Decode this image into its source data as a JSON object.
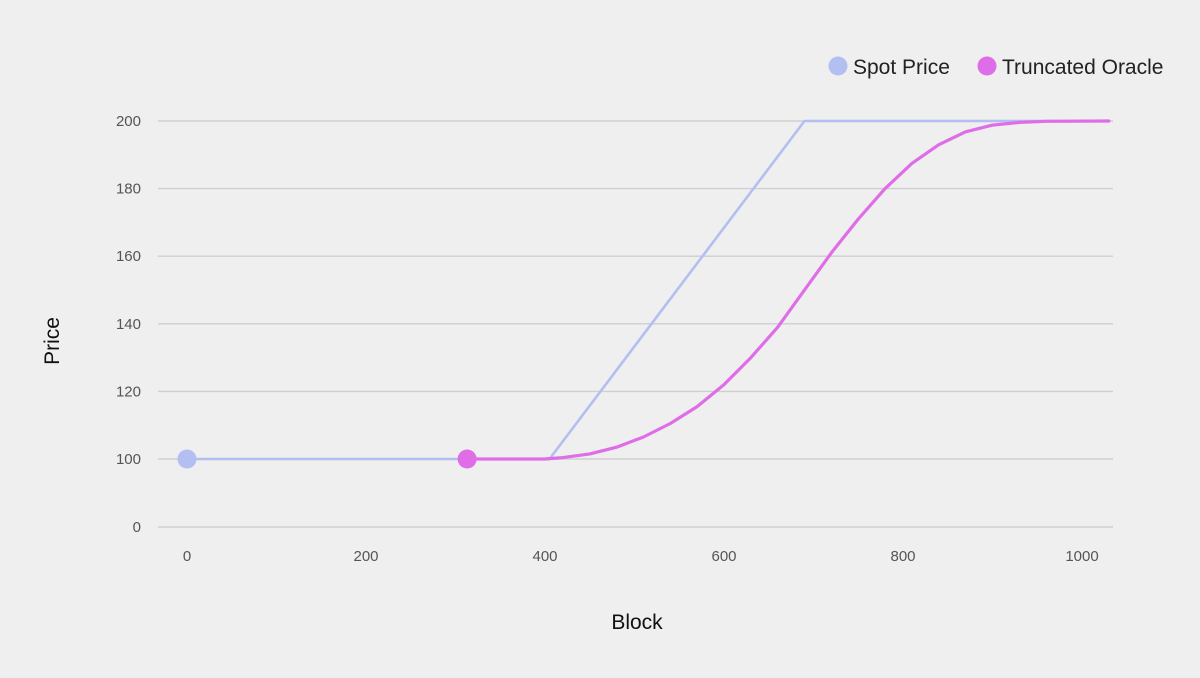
{
  "chart_data": {
    "type": "line",
    "xlabel": "Block",
    "ylabel": "Price",
    "x_ticks": [
      0,
      200,
      400,
      600,
      800,
      1000
    ],
    "y_ticks": [
      0,
      100,
      120,
      140,
      160,
      180,
      200
    ],
    "y_axis_break": "between 0 and 100",
    "xlim": [
      -30,
      1030
    ],
    "grid": "horizontal",
    "legend_position": "top-right",
    "series": [
      {
        "name": "Spot Price",
        "color": "#b3bff0",
        "points": [
          [
            0,
            100
          ],
          [
            405,
            100
          ],
          [
            690,
            200
          ],
          [
            1030,
            200
          ]
        ],
        "marker_at": [
          0,
          100
        ]
      },
      {
        "name": "Truncated Oracle",
        "color": "#e06de8",
        "points": [
          [
            313,
            100
          ],
          [
            400,
            100
          ],
          [
            420,
            100.4
          ],
          [
            450,
            101.5
          ],
          [
            480,
            103.5
          ],
          [
            510,
            106.5
          ],
          [
            540,
            110.5
          ],
          [
            570,
            115.5
          ],
          [
            600,
            122
          ],
          [
            630,
            130
          ],
          [
            660,
            139
          ],
          [
            690,
            150
          ],
          [
            720,
            161
          ],
          [
            750,
            171
          ],
          [
            780,
            180
          ],
          [
            810,
            187.5
          ],
          [
            840,
            193
          ],
          [
            870,
            196.8
          ],
          [
            900,
            198.8
          ],
          [
            930,
            199.6
          ],
          [
            960,
            199.9
          ],
          [
            1030,
            200
          ]
        ],
        "marker_at": [
          313,
          100
        ]
      }
    ]
  }
}
